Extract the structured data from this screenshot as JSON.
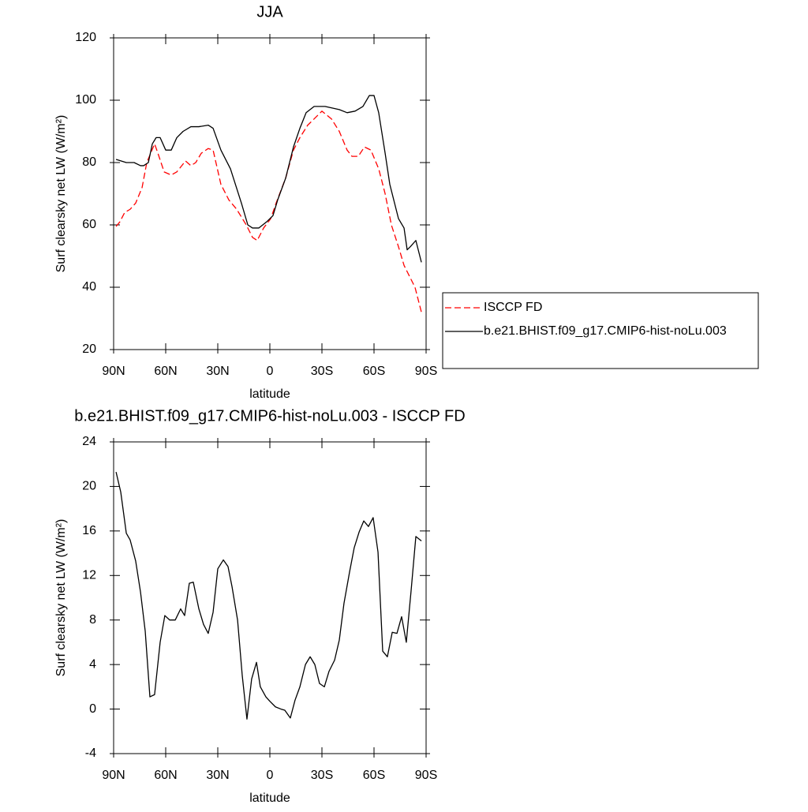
{
  "chart_data": [
    {
      "type": "line",
      "title": "JJA",
      "xlabel": "latitude",
      "ylabel": "Surf clearsky net LW (W/m²)",
      "xlim": [
        90,
        -90
      ],
      "xticks": [
        {
          "value": 90,
          "label": "90N"
        },
        {
          "value": 60,
          "label": "60N"
        },
        {
          "value": 30,
          "label": "30N"
        },
        0,
        {
          "value": -30,
          "label": "30S"
        },
        {
          "value": -60,
          "label": "60S"
        },
        {
          "value": -90,
          "label": "90S"
        }
      ],
      "ylim": [
        20,
        120
      ],
      "yticks": [
        20,
        40,
        60,
        80,
        100,
        120
      ],
      "legend": "right",
      "series": [
        {
          "name": "ISCCP FD",
          "color": "#ff0000",
          "dash": "dashed",
          "x": [
            88.6,
            86.4,
            83.6,
            80.5,
            77.3,
            73.6,
            70.9,
            66.4,
            64.5,
            60.9,
            56.8,
            53.6,
            48.6,
            45.5,
            42.7,
            39.5,
            35.5,
            32.7,
            28.2,
            23.6,
            19.1,
            13.6,
            10,
            7.3,
            3.6,
            -0.5,
            -3.6,
            -9.1,
            -13.6,
            -17.3,
            -21.8,
            -25.5,
            -30,
            -35.5,
            -40,
            -44.5,
            -47.3,
            -50.9,
            -54.5,
            -58.2,
            -62.7,
            -66.4,
            -70,
            -74.1,
            -77.3,
            -80.9,
            -83.6,
            -87.3
          ],
          "values": [
            59.5,
            61,
            64,
            65,
            67,
            72,
            80,
            86,
            83,
            77,
            76,
            77,
            80.5,
            79,
            80,
            83,
            84.5,
            84,
            73,
            68,
            65,
            60,
            56,
            55,
            59,
            62,
            67,
            75,
            84,
            88,
            92,
            94,
            96.5,
            94,
            90,
            84,
            82,
            82,
            85,
            84,
            78,
            70,
            60,
            53,
            47,
            43,
            40,
            32
          ]
        },
        {
          "name": "b.e21.BHIST.f09_g17.CMIP6-hist-noLu.003",
          "color": "#000000",
          "dash": "solid",
          "x": [
            88.6,
            82.7,
            78.2,
            74.5,
            72.7,
            70,
            67.7,
            65.5,
            63.2,
            60,
            56.8,
            53.6,
            50,
            45.5,
            40.9,
            35.5,
            32.7,
            28.2,
            22.7,
            16.4,
            12.7,
            10,
            6.4,
            1.8,
            -1.8,
            -4.5,
            -9.1,
            -13.6,
            -17.3,
            -20.9,
            -25.5,
            -31.8,
            -40,
            -44.5,
            -49.1,
            -53.6,
            -57.3,
            -60,
            -62.7,
            -66.4,
            -69.1,
            -74.1,
            -77.3,
            -79.1,
            -80.9,
            -84.1,
            -87.3
          ],
          "values": [
            81,
            80,
            80,
            79,
            79,
            80,
            86,
            88,
            88,
            84,
            84,
            88,
            90,
            91.5,
            91.5,
            92,
            91,
            84,
            78,
            67,
            60,
            59,
            59,
            61,
            63,
            68,
            75,
            85,
            91,
            96,
            98,
            98,
            97,
            96,
            96.5,
            98,
            101.5,
            101.5,
            96,
            83,
            73,
            62,
            59,
            52,
            53,
            55,
            48
          ]
        }
      ]
    },
    {
      "type": "line",
      "title": "b.e21.BHIST.f09_g17.CMIP6-hist-noLu.003 - ISCCP FD",
      "xlabel": "latitude",
      "ylabel": "Surf clearsky net LW (W/m²)",
      "xlim": [
        90,
        -90
      ],
      "xticks": [
        {
          "value": 90,
          "label": "90N"
        },
        {
          "value": 60,
          "label": "60N"
        },
        {
          "value": 30,
          "label": "30N"
        },
        0,
        {
          "value": -30,
          "label": "30S"
        },
        {
          "value": -60,
          "label": "60S"
        },
        {
          "value": -90,
          "label": "90S"
        }
      ],
      "ylim": [
        -4,
        24
      ],
      "yticks": [
        -4,
        0,
        4,
        8,
        12,
        16,
        20,
        24
      ],
      "series": [
        {
          "color": "#000000",
          "dash": "solid",
          "x": [
            88.6,
            85.9,
            82.7,
            80.5,
            77.3,
            74.5,
            71.8,
            69.1,
            66.4,
            63.2,
            60.5,
            57.7,
            54.5,
            51.4,
            49.1,
            46.4,
            44.1,
            40.9,
            38.2,
            35.5,
            32.7,
            30,
            26.8,
            24.1,
            21.8,
            18.6,
            15.9,
            13.2,
            10.5,
            7.7,
            5.5,
            2.3,
            0,
            -3.2,
            -6.4,
            -8.6,
            -11.8,
            -14.5,
            -17.3,
            -20.5,
            -23.2,
            -25.9,
            -28.6,
            -31.4,
            -34.1,
            -37.3,
            -40,
            -42.7,
            -45.9,
            -48.6,
            -51.4,
            -54.1,
            -56.8,
            -59.5,
            -62.3,
            -65,
            -67.7,
            -70.5,
            -73.2,
            -75.9,
            -78.6,
            -81.4,
            -84.1,
            -87.3
          ],
          "values": [
            21.3,
            19.5,
            15.8,
            15.2,
            13.3,
            10.5,
            7,
            1.1,
            1.3,
            6,
            8.4,
            8,
            8,
            9,
            8.4,
            11.3,
            11.4,
            9,
            7.6,
            6.8,
            8.7,
            12.6,
            13.4,
            12.8,
            11,
            8,
            3,
            -0.9,
            2.7,
            4.2,
            2,
            1.1,
            0.7,
            0.2,
            0,
            -0.1,
            -0.8,
            0.8,
            2,
            4,
            4.7,
            4,
            2.3,
            2,
            3.4,
            4.4,
            6.2,
            9.5,
            12.3,
            14.5,
            15.9,
            16.9,
            16.4,
            17.2,
            14.1,
            5.2,
            4.7,
            6.9,
            6.8,
            8.3,
            6,
            10.7,
            15.5,
            15.1
          ]
        }
      ]
    }
  ]
}
